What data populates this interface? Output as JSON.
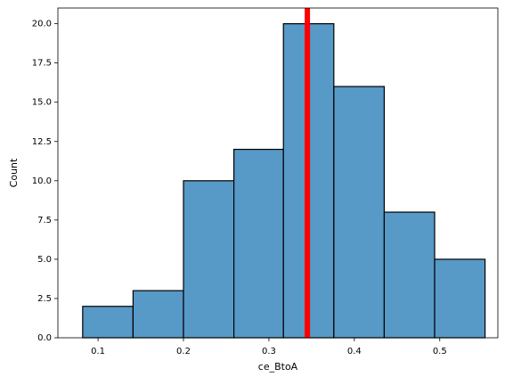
{
  "chart_data": {
    "type": "histogram",
    "xlabel": "ce_BtoA",
    "ylabel": "Count",
    "bins": [
      0.082,
      0.141,
      0.2,
      0.259,
      0.317,
      0.376,
      0.435,
      0.494,
      0.553
    ],
    "counts": [
      2,
      3,
      10,
      12,
      20,
      16,
      8,
      5
    ],
    "color": "#5799c7",
    "edgecolor": "#000000",
    "xlim": [
      0.053,
      0.568
    ],
    "ylim": [
      0,
      21
    ],
    "xticks": [
      0.1,
      0.2,
      0.3,
      0.4,
      0.5
    ],
    "yticks": [
      {
        "value": 0,
        "label": "0.0"
      },
      {
        "value": 2.5,
        "label": "2.5"
      },
      {
        "value": 5,
        "label": "5.0"
      },
      {
        "value": 7.5,
        "label": "7.5"
      },
      {
        "value": 10,
        "label": "10.0"
      },
      {
        "value": 12.5,
        "label": "12.5"
      },
      {
        "value": 15,
        "label": "15.0"
      },
      {
        "value": 17.5,
        "label": "17.5"
      },
      {
        "value": 20,
        "label": "20.0"
      }
    ],
    "vline": {
      "value": 0.345,
      "color": "#ff0000"
    }
  }
}
